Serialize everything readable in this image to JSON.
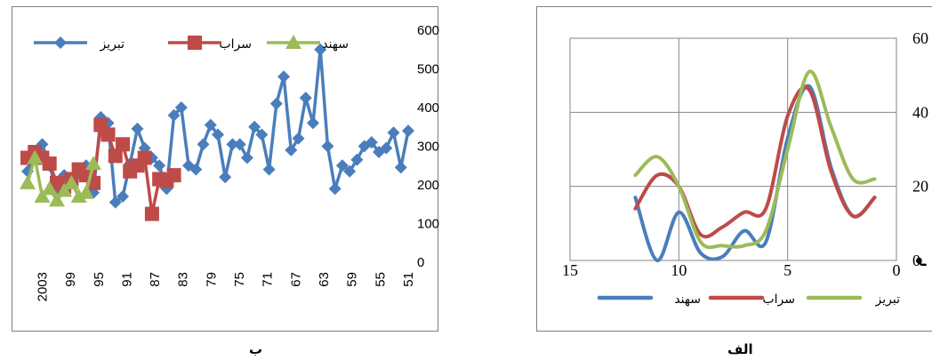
{
  "captions": {
    "left": "ب",
    "right": "الف"
  },
  "chart_data": [
    {
      "panel": "left",
      "type": "line",
      "y_ticks": [
        "600",
        "500",
        "400",
        "300",
        "200",
        "100",
        "0"
      ],
      "ylim": [
        0,
        600
      ],
      "x_tick_labels": [
        "2003",
        "99",
        "95",
        "91",
        "87",
        "83",
        "79",
        "75",
        "71",
        "67",
        "63",
        "59",
        "55",
        "51"
      ],
      "x_dir": "reversed",
      "grid": false,
      "legend_position": "top",
      "series": [
        {
          "name": "تبریز",
          "color": "#4a7ebb",
          "marker": "diamond",
          "values": [
            235,
            285,
            305,
            250,
            185,
            225,
            205,
            230,
            250,
            180,
            375,
            360,
            155,
            170,
            255,
            345,
            295,
            270,
            250,
            190,
            380,
            400,
            250,
            240,
            305,
            355,
            330,
            220,
            305,
            305,
            270,
            350,
            330,
            240,
            410,
            480,
            290,
            320,
            425,
            360,
            550,
            300,
            190,
            250,
            235,
            265,
            300,
            310,
            285,
            295,
            335,
            245,
            340
          ]
        },
        {
          "name": "سراب",
          "color": "#be4b48",
          "marker": "square",
          "values": [
            270,
            285,
            270,
            255,
            205,
            195,
            215,
            240,
            225,
            205,
            355,
            330,
            275,
            305,
            235,
            250,
            270,
            125,
            215,
            210,
            225
          ]
        },
        {
          "name": "سهند",
          "color": "#9bbb59",
          "marker": "triangle",
          "values": [
            205,
            270,
            170,
            190,
            160,
            185,
            205,
            170,
            180,
            255
          ]
        }
      ]
    },
    {
      "panel": "right",
      "type": "line",
      "y_ticks": [
        "60",
        "40",
        "20",
        "0"
      ],
      "ylim": [
        0,
        60
      ],
      "x_ticks": [
        "15",
        "10",
        "5",
        "0"
      ],
      "xlim": [
        15,
        0
      ],
      "grid": true,
      "legend_position": "bottom",
      "ylabel": "م",
      "series": [
        {
          "name": "سهند",
          "color": "#4a7ebb",
          "x": [
            12,
            11,
            10,
            9,
            8,
            7,
            6,
            5,
            4,
            3,
            2,
            1
          ],
          "values": [
            17,
            0,
            13,
            2,
            1,
            8,
            5,
            33,
            47,
            25,
            12,
            17
          ]
        },
        {
          "name": "سراب",
          "color": "#be4b48",
          "x": [
            12,
            11,
            10,
            9,
            8,
            7,
            6,
            5,
            4,
            3,
            2,
            1
          ],
          "values": [
            14,
            23,
            20,
            7,
            9,
            13,
            14,
            39,
            46,
            24,
            12,
            17
          ]
        },
        {
          "name": "تبریز",
          "color": "#9bbb59",
          "x": [
            12,
            11,
            10,
            9,
            8,
            7,
            6,
            5,
            4,
            3,
            2,
            1
          ],
          "values": [
            23,
            28,
            20,
            5,
            4,
            4,
            8,
            30,
            51,
            36,
            22,
            22
          ]
        }
      ]
    }
  ]
}
